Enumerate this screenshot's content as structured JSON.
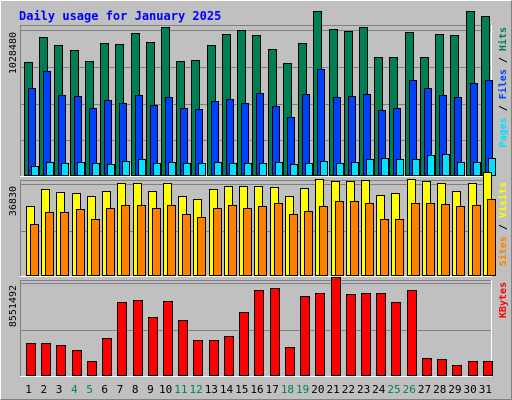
{
  "chart_data": [
    {
      "type": "bar",
      "title": "Daily usage for January 2025",
      "categories": [
        "1",
        "2",
        "3",
        "4",
        "5",
        "6",
        "7",
        "8",
        "9",
        "10",
        "11",
        "12",
        "13",
        "14",
        "15",
        "16",
        "17",
        "18",
        "19",
        "20",
        "21",
        "22",
        "23",
        "24",
        "25",
        "26",
        "27",
        "28",
        "29",
        "30",
        "31"
      ],
      "weekend_days": [
        4,
        5,
        11,
        12,
        18,
        19,
        25,
        26
      ],
      "series": [
        {
          "name": "Hits",
          "color": "#007f54",
          "values": [
            797500,
            975900,
            914800,
            882100,
            802800,
            930500,
            924400,
            1000300,
            939900,
            1043600,
            808000,
            809100,
            916600,
            995600,
            1022700,
            988200,
            889700,
            790600,
            933900,
            1152100,
            1025600,
            1017700,
            1041800,
            830700,
            830700,
            1007800,
            830700,
            993500,
            983300,
            1152100,
            1116700
          ]
        },
        {
          "name": "Files",
          "color": "#0040ff",
          "values": [
            612900,
            733200,
            568900,
            558400,
            472700,
            531300,
            509800,
            568600,
            498700,
            552200,
            472700,
            466000,
            521400,
            535300,
            512900,
            580100,
            489500,
            410500,
            574900,
            745600,
            555500,
            557700,
            575800,
            464800,
            472700,
            669300,
            616600,
            563300,
            555500,
            652900,
            672500
          ]
        },
        {
          "name": "Pages",
          "color": "#00e0ff",
          "values": [
            72000,
            100000,
            93000,
            97000,
            93000,
            85000,
            104700,
            115700,
            93000,
            100000,
            93000,
            93000,
            97000,
            93000,
            93000,
            93000,
            100000,
            85000,
            93000,
            104700,
            93000,
            97000,
            115700,
            122700,
            115700,
            115700,
            145700,
            152700,
            100000,
            97000,
            128000
          ]
        }
      ],
      "ymax_label": "1028480",
      "right_label": "Pages / Files / Hits"
    },
    {
      "type": "bar",
      "series": [
        {
          "name": "Visits",
          "color": "#ffff00",
          "values": [
            27800,
            34300,
            33200,
            32800,
            31600,
            33800,
            36800,
            36700,
            33800,
            36800,
            31600,
            30500,
            34400,
            35700,
            35600,
            35700,
            35400,
            31700,
            34700,
            38300,
            37600,
            37600,
            38000,
            32200,
            33000,
            38300,
            37600,
            36800,
            33800,
            36800,
            41000
          ]
        },
        {
          "name": "Sites",
          "color": "#ff8000",
          "values": [
            20700,
            25300,
            25400,
            26400,
            22500,
            27100,
            28200,
            28300,
            27100,
            28300,
            24500,
            23500,
            26800,
            28300,
            26900,
            27800,
            29000,
            24700,
            25700,
            27900,
            29600,
            29600,
            28800,
            22400,
            22700,
            28800,
            28800,
            28400,
            27900,
            28300,
            30500
          ]
        }
      ],
      "ymax_label": "36830",
      "right_label": "Sites / Visits"
    },
    {
      "type": "bar",
      "series": [
        {
          "name": "KBytes",
          "color": "#ff0000",
          "values": [
            2990000,
            2990000,
            2780000,
            2370000,
            1390000,
            3460000,
            6720000,
            6880000,
            5330000,
            6800000,
            5100000,
            3230000,
            3300000,
            3650000,
            5840000,
            7840000,
            8030000,
            2610000,
            7280000,
            7510000,
            8990000,
            7430000,
            7510000,
            7560000,
            6730000,
            7820000,
            1660000,
            1520000,
            1010000,
            1370000,
            1390000
          ]
        }
      ],
      "ymax_label": "8551492",
      "right_label": "KBytes"
    }
  ]
}
